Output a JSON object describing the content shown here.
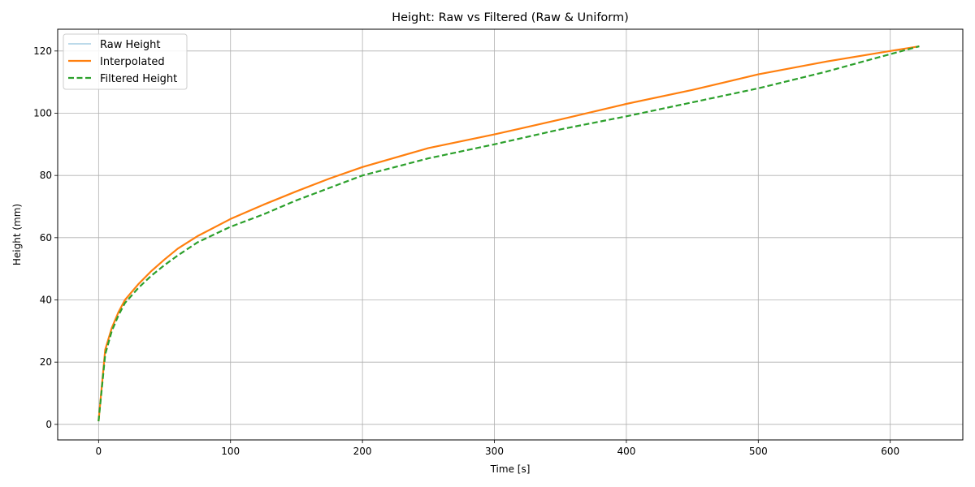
{
  "chart_data": {
    "type": "line",
    "title": "Height: Raw vs Filtered (Raw & Uniform)",
    "xlabel": "Time [s]",
    "ylabel": "Height (mm)",
    "xlim": [
      -31,
      655
    ],
    "ylim": [
      -5,
      127
    ],
    "xticks": [
      0,
      100,
      200,
      300,
      400,
      500,
      600
    ],
    "yticks": [
      0,
      20,
      40,
      60,
      80,
      100,
      120
    ],
    "grid": true,
    "legend_position": "top-left",
    "series": [
      {
        "name": "Raw Height",
        "color": "#a6cee3",
        "style": "solid",
        "x": [
          0,
          5,
          10,
          15,
          20,
          30,
          40,
          50,
          60,
          75,
          100,
          125,
          150,
          175,
          200,
          250,
          300,
          350,
          400,
          450,
          500,
          550,
          600,
          622
        ],
        "y": [
          1,
          24,
          31,
          36,
          40,
          45,
          49.3,
          53,
          56.5,
          60.5,
          66,
          70.6,
          74.9,
          79,
          82.7,
          88.8,
          93.2,
          98,
          103,
          107.5,
          112.5,
          116.5,
          120,
          121.5
        ]
      },
      {
        "name": "Interpolated",
        "color": "#ff7f0e",
        "style": "solid",
        "x": [
          0,
          5,
          10,
          15,
          20,
          30,
          40,
          50,
          60,
          75,
          100,
          125,
          150,
          175,
          200,
          250,
          300,
          350,
          400,
          450,
          500,
          550,
          600,
          622
        ],
        "y": [
          1,
          24,
          31,
          36,
          40,
          45,
          49.3,
          53,
          56.5,
          60.5,
          66,
          70.6,
          74.9,
          79,
          82.7,
          88.8,
          93.2,
          98,
          103,
          107.5,
          112.5,
          116.5,
          120,
          121.5
        ]
      },
      {
        "name": "Filtered Height",
        "color": "#2ca02c",
        "style": "dashed",
        "x": [
          0,
          5,
          10,
          15,
          20,
          30,
          40,
          50,
          60,
          75,
          100,
          125,
          150,
          175,
          200,
          250,
          300,
          350,
          400,
          450,
          500,
          550,
          600,
          622
        ],
        "y": [
          1,
          22.5,
          30,
          35,
          39,
          43.8,
          47.8,
          51.2,
          54.3,
          58.5,
          63.5,
          67.5,
          72,
          76,
          80,
          85.5,
          90,
          94.8,
          99,
          103.5,
          108,
          113.2,
          119,
          121.5
        ]
      }
    ]
  }
}
